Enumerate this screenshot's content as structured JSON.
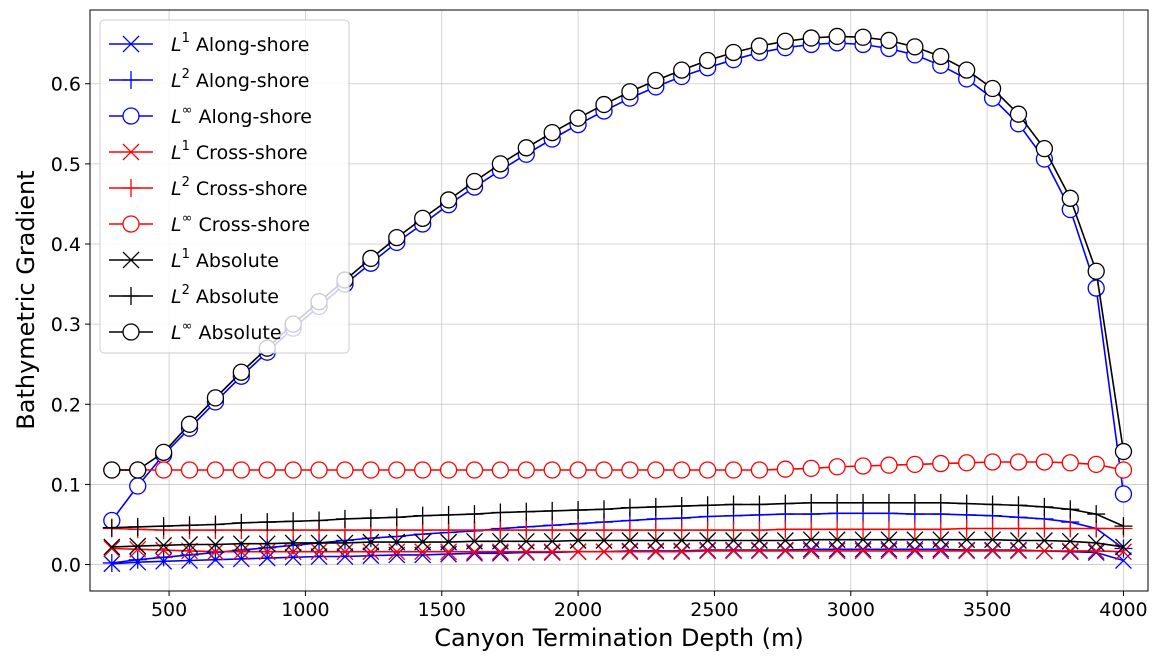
{
  "chart_data": {
    "type": "line",
    "xlabel": "Canyon Termination Depth (m)",
    "ylabel": "Bathymetric Gradient",
    "xlim": [
      210,
      4090
    ],
    "ylim": [
      -0.033,
      0.692
    ],
    "xticks": [
      500,
      1000,
      1500,
      2000,
      2500,
      3000,
      3500,
      4000
    ],
    "yticks": [
      0.0,
      0.1,
      0.2,
      0.3,
      0.4,
      0.5,
      0.6
    ],
    "ytick_labels": [
      "0.0",
      "0.1",
      "0.2",
      "0.3",
      "0.4",
      "0.5",
      "0.6"
    ],
    "grid": true,
    "legend_position": "upper-left",
    "x": [
      290,
      385,
      480,
      575,
      670,
      765,
      860,
      955,
      1050,
      1145,
      1240,
      1335,
      1430,
      1525,
      1620,
      1715,
      1810,
      1905,
      2000,
      2095,
      2190,
      2285,
      2380,
      2475,
      2570,
      2665,
      2760,
      2855,
      2950,
      3045,
      3140,
      3235,
      3330,
      3425,
      3520,
      3615,
      3710,
      3805,
      3900,
      4000
    ],
    "series": [
      {
        "name": "Along-shore",
        "norm": "1",
        "color": "#0000ff",
        "marker": "x",
        "values": [
          0.001,
          0.003,
          0.004,
          0.005,
          0.006,
          0.007,
          0.008,
          0.009,
          0.01,
          0.01,
          0.011,
          0.012,
          0.012,
          0.013,
          0.014,
          0.014,
          0.015,
          0.015,
          0.016,
          0.016,
          0.017,
          0.017,
          0.017,
          0.018,
          0.018,
          0.018,
          0.018,
          0.019,
          0.019,
          0.019,
          0.019,
          0.019,
          0.019,
          0.018,
          0.018,
          0.018,
          0.017,
          0.016,
          0.015,
          0.005
        ]
      },
      {
        "name": "Along-shore",
        "norm": "2",
        "color": "#0000ff",
        "marker": "+",
        "values": [
          0.002,
          0.006,
          0.009,
          0.012,
          0.015,
          0.018,
          0.021,
          0.024,
          0.027,
          0.03,
          0.033,
          0.035,
          0.038,
          0.04,
          0.042,
          0.045,
          0.047,
          0.049,
          0.051,
          0.053,
          0.055,
          0.057,
          0.058,
          0.06,
          0.061,
          0.062,
          0.063,
          0.063,
          0.064,
          0.064,
          0.064,
          0.063,
          0.063,
          0.062,
          0.061,
          0.059,
          0.057,
          0.053,
          0.045,
          0.02
        ]
      },
      {
        "name": "Along-shore",
        "norm": "inf",
        "color": "#0000ff",
        "marker": "o",
        "values": [
          0.055,
          0.098,
          0.137,
          0.17,
          0.203,
          0.235,
          0.265,
          0.295,
          0.322,
          0.35,
          0.376,
          0.402,
          0.425,
          0.449,
          0.471,
          0.492,
          0.512,
          0.531,
          0.549,
          0.566,
          0.582,
          0.596,
          0.609,
          0.62,
          0.63,
          0.639,
          0.645,
          0.649,
          0.651,
          0.649,
          0.644,
          0.636,
          0.623,
          0.606,
          0.582,
          0.55,
          0.506,
          0.443,
          0.345,
          0.088
        ]
      },
      {
        "name": "Cross-shore",
        "norm": "1",
        "color": "#ff0000",
        "marker": "x",
        "values": [
          0.02,
          0.019,
          0.018,
          0.017,
          0.016,
          0.016,
          0.016,
          0.016,
          0.016,
          0.016,
          0.016,
          0.016,
          0.016,
          0.016,
          0.016,
          0.016,
          0.016,
          0.016,
          0.016,
          0.016,
          0.016,
          0.016,
          0.016,
          0.017,
          0.017,
          0.017,
          0.017,
          0.017,
          0.017,
          0.017,
          0.017,
          0.017,
          0.017,
          0.017,
          0.017,
          0.017,
          0.017,
          0.017,
          0.017,
          0.016
        ]
      },
      {
        "name": "Cross-shore",
        "norm": "2",
        "color": "#ff0000",
        "marker": "+",
        "values": [
          0.045,
          0.044,
          0.043,
          0.043,
          0.043,
          0.043,
          0.043,
          0.043,
          0.043,
          0.043,
          0.043,
          0.043,
          0.043,
          0.043,
          0.043,
          0.043,
          0.043,
          0.043,
          0.043,
          0.043,
          0.043,
          0.043,
          0.043,
          0.043,
          0.043,
          0.043,
          0.044,
          0.044,
          0.044,
          0.044,
          0.044,
          0.044,
          0.044,
          0.045,
          0.045,
          0.045,
          0.045,
          0.045,
          0.045,
          0.045
        ]
      },
      {
        "name": "Cross-shore",
        "norm": "inf",
        "color": "#ff0000",
        "marker": "o",
        "values": [
          0.118,
          0.118,
          0.118,
          0.118,
          0.118,
          0.118,
          0.118,
          0.118,
          0.118,
          0.118,
          0.118,
          0.118,
          0.118,
          0.118,
          0.118,
          0.118,
          0.118,
          0.118,
          0.118,
          0.118,
          0.118,
          0.118,
          0.118,
          0.118,
          0.118,
          0.118,
          0.119,
          0.12,
          0.122,
          0.123,
          0.124,
          0.125,
          0.126,
          0.127,
          0.128,
          0.128,
          0.128,
          0.127,
          0.125,
          0.118
        ]
      },
      {
        "name": "Absolute",
        "norm": "1",
        "color": "#000000",
        "marker": "x",
        "values": [
          0.022,
          0.023,
          0.024,
          0.025,
          0.025,
          0.026,
          0.026,
          0.027,
          0.027,
          0.027,
          0.028,
          0.028,
          0.028,
          0.028,
          0.029,
          0.029,
          0.029,
          0.029,
          0.03,
          0.03,
          0.03,
          0.03,
          0.03,
          0.03,
          0.03,
          0.03,
          0.03,
          0.031,
          0.031,
          0.031,
          0.031,
          0.031,
          0.031,
          0.031,
          0.031,
          0.03,
          0.03,
          0.029,
          0.027,
          0.022
        ]
      },
      {
        "name": "Absolute",
        "norm": "2",
        "color": "#000000",
        "marker": "+",
        "values": [
          0.046,
          0.047,
          0.048,
          0.049,
          0.05,
          0.052,
          0.053,
          0.054,
          0.055,
          0.057,
          0.058,
          0.059,
          0.061,
          0.062,
          0.063,
          0.065,
          0.066,
          0.067,
          0.068,
          0.069,
          0.071,
          0.072,
          0.073,
          0.074,
          0.075,
          0.075,
          0.076,
          0.077,
          0.077,
          0.077,
          0.077,
          0.077,
          0.077,
          0.076,
          0.075,
          0.074,
          0.072,
          0.069,
          0.063,
          0.048
        ]
      },
      {
        "name": "Absolute",
        "norm": "inf",
        "color": "#000000",
        "marker": "o",
        "values": [
          0.118,
          0.118,
          0.14,
          0.175,
          0.208,
          0.24,
          0.27,
          0.3,
          0.328,
          0.355,
          0.382,
          0.408,
          0.432,
          0.455,
          0.478,
          0.5,
          0.52,
          0.539,
          0.557,
          0.574,
          0.59,
          0.604,
          0.617,
          0.629,
          0.639,
          0.647,
          0.653,
          0.657,
          0.659,
          0.658,
          0.654,
          0.646,
          0.634,
          0.617,
          0.594,
          0.562,
          0.519,
          0.457,
          0.366,
          0.141
        ]
      }
    ]
  },
  "legend": {
    "items": [
      {
        "prefix": "L",
        "sup": "1",
        "label": " Along-shore"
      },
      {
        "prefix": "L",
        "sup": "2",
        "label": " Along-shore"
      },
      {
        "prefix": "L",
        "sup": "∞",
        "label": " Along-shore"
      },
      {
        "prefix": "L",
        "sup": "1",
        "label": " Cross-shore"
      },
      {
        "prefix": "L",
        "sup": "2",
        "label": " Cross-shore"
      },
      {
        "prefix": "L",
        "sup": "∞",
        "label": " Cross-shore"
      },
      {
        "prefix": "L",
        "sup": "1",
        "label": " Absolute"
      },
      {
        "prefix": "L",
        "sup": "2",
        "label": " Absolute"
      },
      {
        "prefix": "L",
        "sup": "∞",
        "label": " Absolute"
      }
    ]
  }
}
